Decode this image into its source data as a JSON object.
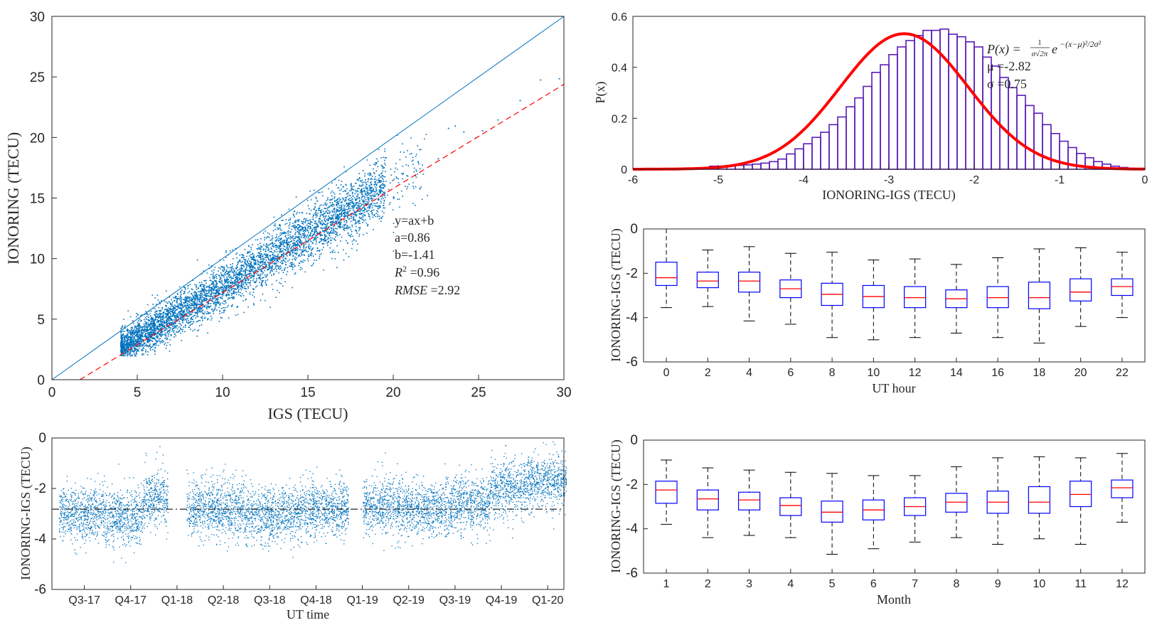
{
  "chart_data": [
    {
      "id": "scatter",
      "type": "scatter",
      "xlabel": "IGS (TECU)",
      "ylabel": "IONORING (TECU)",
      "xlim": [
        0,
        30
      ],
      "ylim": [
        0,
        30
      ],
      "xticks": [
        0,
        5,
        10,
        15,
        20,
        25,
        30
      ],
      "yticks": [
        0,
        5,
        10,
        15,
        20,
        25,
        30
      ],
      "reference_line": {
        "slope": 1,
        "intercept": 0,
        "color": "#0072bd"
      },
      "fit_line": {
        "slope": 0.86,
        "intercept": -1.41,
        "color": "#ff0000",
        "style": "dashed"
      },
      "point_color": "#0072bd",
      "outliers": [
        [
          23.2,
          20.8
        ],
        [
          23.6,
          21.0
        ],
        [
          24.1,
          20.5
        ],
        [
          25.2,
          20.6
        ],
        [
          26.1,
          21.5
        ],
        [
          27.4,
          23.1
        ],
        [
          28.6,
          24.8
        ],
        [
          29.7,
          24.9
        ],
        [
          24.8,
          20.0
        ],
        [
          22.6,
          18.3
        ]
      ],
      "annotation": {
        "line1": "y=ax+b",
        "line2": "a=0.86",
        "line3": "b=-1.41",
        "line4_sym": "R",
        "line4_sup": "2",
        "line4_val": " =0.96",
        "line5_sym": "RMSE",
        "line5_val": " =2.92"
      }
    },
    {
      "id": "histogram",
      "type": "bar",
      "xlabel": "IONORING-IGS (TECU)",
      "ylabel": "P(x)",
      "xlim": [
        -6,
        0
      ],
      "ylim": [
        0,
        0.6
      ],
      "xticks": [
        -6,
        -5,
        -4,
        -3,
        -2,
        -1,
        0
      ],
      "yticks": [
        0,
        0.2,
        0.4,
        0.6
      ],
      "bin_edges_start": -5.2,
      "bin_width": 0.1,
      "densities": [
        0.005,
        0.012,
        0.012,
        0.012,
        0.015,
        0.017,
        0.02,
        0.024,
        0.03,
        0.04,
        0.06,
        0.08,
        0.1,
        0.125,
        0.145,
        0.175,
        0.205,
        0.245,
        0.28,
        0.325,
        0.38,
        0.41,
        0.45,
        0.48,
        0.505,
        0.525,
        0.545,
        0.545,
        0.55,
        0.53,
        0.52,
        0.5,
        0.48,
        0.44,
        0.405,
        0.36,
        0.32,
        0.29,
        0.25,
        0.22,
        0.175,
        0.14,
        0.11,
        0.085,
        0.062,
        0.045,
        0.03,
        0.02,
        0.012,
        0.007,
        0.004,
        0.002
      ],
      "bar_color": "#5a1bb8",
      "fit": {
        "mu": -2.82,
        "sigma": 0.75,
        "color": "#ff0000"
      },
      "annotation": {
        "formula_lhs": "P(x) =",
        "formula_num": "1",
        "formula_den": "σ√2π",
        "formula_exp_base": "e",
        "formula_exp": "−(x−μ)²/2σ²",
        "mu_label": "μ =-2.82",
        "sigma_label": "σ =0.75"
      }
    },
    {
      "id": "timeseries",
      "type": "scatter",
      "xlabel": "UT time",
      "ylabel": "IONORING-IGS (TECU)",
      "ylim": [
        -6,
        0
      ],
      "yticks": [
        0,
        -2,
        -4,
        -6
      ],
      "categories": [
        "Q3-17",
        "Q4-17",
        "Q1-18",
        "Q2-18",
        "Q3-18",
        "Q4-18",
        "Q1-19",
        "Q2-19",
        "Q3-19",
        "Q4-19",
        "Q1-20"
      ],
      "mean_line": -2.82,
      "point_color": "#0072bd",
      "gaps": [
        [
          2.35,
          2.75
        ],
        [
          6.25,
          6.55
        ]
      ],
      "segment_means": [
        [
          0,
          1,
          -3.0
        ],
        [
          1,
          1.8,
          -3.1
        ],
        [
          1.8,
          2.35,
          -2.4
        ],
        [
          2.75,
          4,
          -2.8
        ],
        [
          4,
          5.2,
          -3.0
        ],
        [
          5.2,
          6.25,
          -2.8
        ],
        [
          6.55,
          7.5,
          -2.7
        ],
        [
          7.5,
          8.5,
          -2.8
        ],
        [
          8.5,
          9.3,
          -2.6
        ],
        [
          9.3,
          10.2,
          -1.9
        ],
        [
          10.2,
          10.95,
          -1.7
        ]
      ]
    },
    {
      "id": "box_hour",
      "type": "box",
      "xlabel": "UT hour",
      "ylabel": "IONORING-IGS (TECU)",
      "ylim": [
        -6,
        0
      ],
      "yticks": [
        0,
        -2,
        -4,
        -6
      ],
      "categories": [
        "0",
        "2",
        "4",
        "6",
        "8",
        "10",
        "12",
        "14",
        "16",
        "18",
        "20",
        "22"
      ],
      "boxes": [
        {
          "wl": -3.55,
          "q1": -2.55,
          "med": -2.2,
          "q3": -1.5,
          "wh": 0.0
        },
        {
          "wl": -3.5,
          "q1": -2.65,
          "med": -2.35,
          "q3": -1.95,
          "wh": -0.95
        },
        {
          "wl": -4.15,
          "q1": -2.85,
          "med": -2.35,
          "q3": -1.95,
          "wh": -0.8
        },
        {
          "wl": -4.3,
          "q1": -3.1,
          "med": -2.7,
          "q3": -2.3,
          "wh": -1.1
        },
        {
          "wl": -4.9,
          "q1": -3.45,
          "med": -2.95,
          "q3": -2.45,
          "wh": -1.05
        },
        {
          "wl": -5.0,
          "q1": -3.55,
          "med": -3.05,
          "q3": -2.55,
          "wh": -1.4
        },
        {
          "wl": -4.9,
          "q1": -3.55,
          "med": -3.1,
          "q3": -2.6,
          "wh": -1.35
        },
        {
          "wl": -4.7,
          "q1": -3.55,
          "med": -3.15,
          "q3": -2.75,
          "wh": -1.6
        },
        {
          "wl": -4.9,
          "q1": -3.55,
          "med": -3.1,
          "q3": -2.6,
          "wh": -1.3
        },
        {
          "wl": -5.15,
          "q1": -3.6,
          "med": -3.1,
          "q3": -2.4,
          "wh": -0.9
        },
        {
          "wl": -4.4,
          "q1": -3.25,
          "med": -2.85,
          "q3": -2.25,
          "wh": -0.85
        },
        {
          "wl": -4.0,
          "q1": -3.0,
          "med": -2.6,
          "q3": -2.25,
          "wh": -1.05
        }
      ],
      "box_color": "#0000ff",
      "median_color": "#ff0000"
    },
    {
      "id": "box_month",
      "type": "box",
      "xlabel": "Month",
      "ylabel": "IONORING-IGS (TECU)",
      "ylim": [
        -6,
        0
      ],
      "yticks": [
        0,
        -2,
        -4,
        -6
      ],
      "categories": [
        "1",
        "2",
        "3",
        "4",
        "5",
        "6",
        "7",
        "8",
        "9",
        "10",
        "11",
        "12"
      ],
      "boxes": [
        {
          "wl": -3.8,
          "q1": -2.85,
          "med": -2.25,
          "q3": -1.85,
          "wh": -0.9
        },
        {
          "wl": -4.4,
          "q1": -3.15,
          "med": -2.65,
          "q3": -2.25,
          "wh": -1.25
        },
        {
          "wl": -4.3,
          "q1": -3.15,
          "med": -2.7,
          "q3": -2.35,
          "wh": -1.35
        },
        {
          "wl": -4.4,
          "q1": -3.4,
          "med": -2.95,
          "q3": -2.6,
          "wh": -1.45
        },
        {
          "wl": -5.15,
          "q1": -3.7,
          "med": -3.25,
          "q3": -2.75,
          "wh": -1.5
        },
        {
          "wl": -4.9,
          "q1": -3.6,
          "med": -3.15,
          "q3": -2.7,
          "wh": -1.6
        },
        {
          "wl": -4.6,
          "q1": -3.4,
          "med": -3.0,
          "q3": -2.6,
          "wh": -1.6
        },
        {
          "wl": -4.4,
          "q1": -3.25,
          "med": -2.8,
          "q3": -2.4,
          "wh": -1.2
        },
        {
          "wl": -4.7,
          "q1": -3.3,
          "med": -2.8,
          "q3": -2.3,
          "wh": -0.8
        },
        {
          "wl": -4.45,
          "q1": -3.3,
          "med": -2.8,
          "q3": -2.1,
          "wh": -0.75
        },
        {
          "wl": -4.7,
          "q1": -3.0,
          "med": -2.45,
          "q3": -1.85,
          "wh": -0.8
        },
        {
          "wl": -3.7,
          "q1": -2.6,
          "med": -2.15,
          "q3": -1.8,
          "wh": -0.6
        }
      ],
      "box_color": "#0000ff",
      "median_color": "#ff0000"
    }
  ]
}
